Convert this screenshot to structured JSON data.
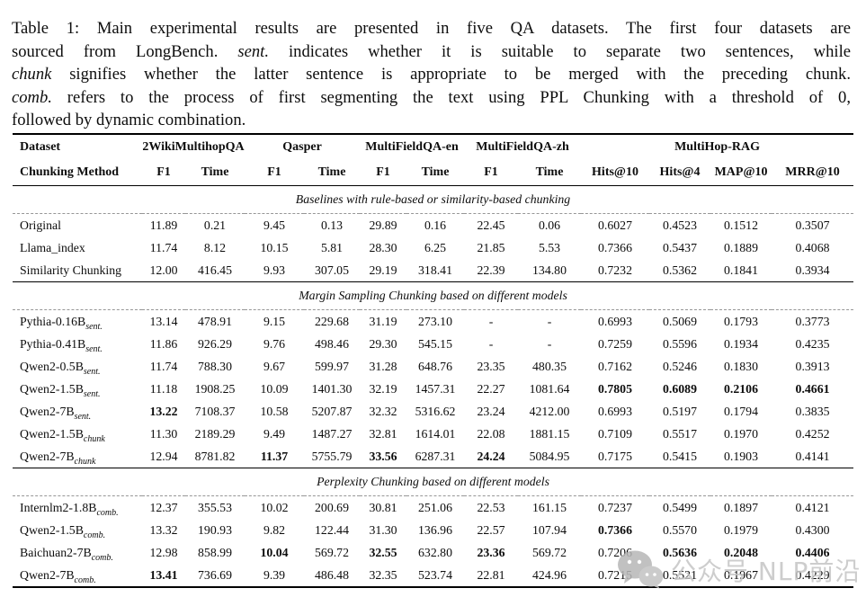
{
  "caption": {
    "lines": [
      {
        "last": false,
        "segments": [
          {
            "t": "Table 1: Main experimental results are presented in five QA datasets. The first four datasets are",
            "i": false
          }
        ]
      },
      {
        "last": false,
        "segments": [
          {
            "t": "sourced from LongBench. ",
            "i": false
          },
          {
            "t": "sent.",
            "i": true
          },
          {
            "t": " indicates whether it is suitable to separate two sentences, while",
            "i": false
          }
        ]
      },
      {
        "last": false,
        "segments": [
          {
            "t": "chunk",
            "i": true
          },
          {
            "t": " signifies whether the latter sentence is appropriate to be merged with the preceding chunk.",
            "i": false
          }
        ]
      },
      {
        "last": false,
        "segments": [
          {
            "t": "comb.",
            "i": true
          },
          {
            "t": " refers to the process of first segmenting the text using PPL Chunking with a threshold of 0,",
            "i": false
          }
        ]
      },
      {
        "last": true,
        "segments": [
          {
            "t": "followed by dynamic combination.",
            "i": false
          }
        ]
      }
    ]
  },
  "table": {
    "corner": {
      "line1": "Dataset",
      "line2": "Chunking Method"
    },
    "groups": [
      {
        "label": "2WikiMultihopQA",
        "cols": [
          "F1",
          "Time"
        ]
      },
      {
        "label": "Qasper",
        "cols": [
          "F1",
          "Time"
        ]
      },
      {
        "label": "MultiFieldQA-en",
        "cols": [
          "F1",
          "Time"
        ]
      },
      {
        "label": "MultiFieldQA-zh",
        "cols": [
          "F1",
          "Time"
        ]
      },
      {
        "label": "MultiHop-RAG",
        "cols": [
          "Hits@10",
          "Hits@4",
          "MAP@10",
          "MRR@10"
        ]
      }
    ],
    "sections": [
      {
        "label": "Baselines with rule-based or similarity-based chunking",
        "rows": [
          {
            "method": "Original",
            "sub": "",
            "values": [
              "11.89",
              "0.21",
              "9.45",
              "0.13",
              "29.89",
              "0.16",
              "22.45",
              "0.06",
              "0.6027",
              "0.4523",
              "0.1512",
              "0.3507"
            ],
            "bold": []
          },
          {
            "method": "Llama_index",
            "sub": "",
            "values": [
              "11.74",
              "8.12",
              "10.15",
              "5.81",
              "28.30",
              "6.25",
              "21.85",
              "5.53",
              "0.7366",
              "0.5437",
              "0.1889",
              "0.4068"
            ],
            "bold": []
          },
          {
            "method": "Similarity Chunking",
            "sub": "",
            "values": [
              "12.00",
              "416.45",
              "9.93",
              "307.05",
              "29.19",
              "318.41",
              "22.39",
              "134.80",
              "0.7232",
              "0.5362",
              "0.1841",
              "0.3934"
            ],
            "bold": []
          }
        ]
      },
      {
        "label": "Margin Sampling Chunking based on different models",
        "rows": [
          {
            "method": "Pythia-0.16B",
            "sub": "sent.",
            "values": [
              "13.14",
              "478.91",
              "9.15",
              "229.68",
              "31.19",
              "273.10",
              "-",
              "-",
              "0.6993",
              "0.5069",
              "0.1793",
              "0.3773"
            ],
            "bold": []
          },
          {
            "method": "Pythia-0.41B",
            "sub": "sent.",
            "values": [
              "11.86",
              "926.29",
              "9.76",
              "498.46",
              "29.30",
              "545.15",
              "-",
              "-",
              "0.7259",
              "0.5596",
              "0.1934",
              "0.4235"
            ],
            "bold": []
          },
          {
            "method": "Qwen2-0.5B",
            "sub": "sent.",
            "values": [
              "11.74",
              "788.30",
              "9.67",
              "599.97",
              "31.28",
              "648.76",
              "23.35",
              "480.35",
              "0.7162",
              "0.5246",
              "0.1830",
              "0.3913"
            ],
            "bold": []
          },
          {
            "method": "Qwen2-1.5B",
            "sub": "sent.",
            "values": [
              "11.18",
              "1908.25",
              "10.09",
              "1401.30",
              "32.19",
              "1457.31",
              "22.27",
              "1081.64",
              "0.7805",
              "0.6089",
              "0.2106",
              "0.4661"
            ],
            "bold": [
              8,
              9,
              10,
              11
            ]
          },
          {
            "method": "Qwen2-7B",
            "sub": "sent.",
            "values": [
              "13.22",
              "7108.37",
              "10.58",
              "5207.87",
              "32.32",
              "5316.62",
              "23.24",
              "4212.00",
              "0.6993",
              "0.5197",
              "0.1794",
              "0.3835"
            ],
            "bold": [
              0
            ]
          },
          {
            "method": "Qwen2-1.5B",
            "sub": "chunk",
            "values": [
              "11.30",
              "2189.29",
              "9.49",
              "1487.27",
              "32.81",
              "1614.01",
              "22.08",
              "1881.15",
              "0.7109",
              "0.5517",
              "0.1970",
              "0.4252"
            ],
            "bold": []
          },
          {
            "method": "Qwen2-7B",
            "sub": "chunk",
            "values": [
              "12.94",
              "8781.82",
              "11.37",
              "5755.79",
              "33.56",
              "6287.31",
              "24.24",
              "5084.95",
              "0.7175",
              "0.5415",
              "0.1903",
              "0.4141"
            ],
            "bold": [
              2,
              4,
              6
            ]
          }
        ]
      },
      {
        "label": "Perplexity Chunking based on different models",
        "rows": [
          {
            "method": "Internlm2-1.8B",
            "sub": "comb.",
            "values": [
              "12.37",
              "355.53",
              "10.02",
              "200.69",
              "30.81",
              "251.06",
              "22.53",
              "161.15",
              "0.7237",
              "0.5499",
              "0.1897",
              "0.4121"
            ],
            "bold": []
          },
          {
            "method": "Qwen2-1.5B",
            "sub": "comb.",
            "values": [
              "13.32",
              "190.93",
              "9.82",
              "122.44",
              "31.30",
              "136.96",
              "22.57",
              "107.94",
              "0.7366",
              "0.5570",
              "0.1979",
              "0.4300"
            ],
            "bold": [
              8
            ]
          },
          {
            "method": "Baichuan2-7B",
            "sub": "comb.",
            "values": [
              "12.98",
              "858.99",
              "10.04",
              "569.72",
              "32.55",
              "632.80",
              "23.36",
              "569.72",
              "0.7206",
              "0.5636",
              "0.2048",
              "0.4406"
            ],
            "bold": [
              2,
              4,
              6,
              9,
              10,
              11
            ]
          },
          {
            "method": "Qwen2-7B",
            "sub": "comb.",
            "values": [
              "13.41",
              "736.69",
              "9.39",
              "486.48",
              "32.35",
              "523.74",
              "22.81",
              "424.96",
              "0.7215",
              "0.5521",
              "0.1967",
              "0.4229"
            ],
            "bold": [
              0
            ]
          }
        ]
      }
    ]
  },
  "watermark": {
    "text": "公众号 NLP前沿"
  }
}
